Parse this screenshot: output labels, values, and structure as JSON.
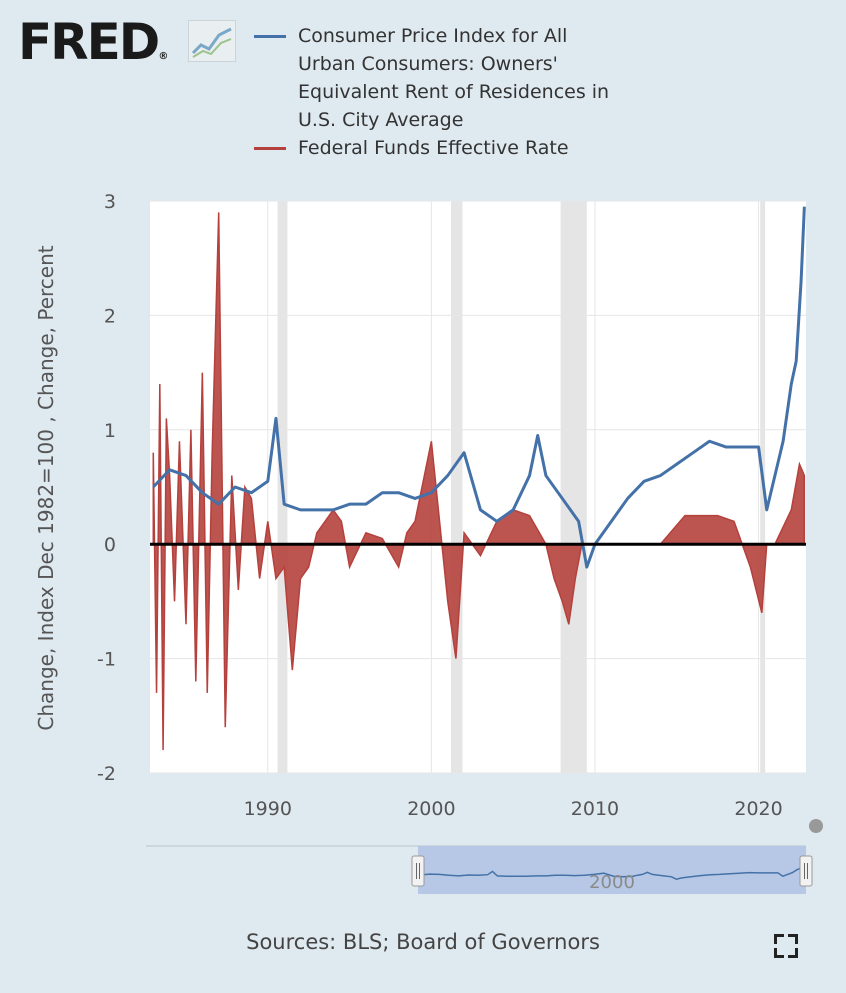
{
  "logo": {
    "text": "FRED",
    "registered": "®"
  },
  "chart_data": {
    "type": "line",
    "x_range": [
      1982.8,
      2022.9
    ],
    "ylim": [
      -2,
      3
    ],
    "yticks": [
      3,
      2,
      1,
      0,
      -1,
      -2
    ],
    "xticks": [
      1990,
      2000,
      2010,
      2020
    ],
    "ylabel": "Change, Index Dec 1982=100 , Change, Percent",
    "recessions": [
      [
        1990.6,
        1991.2
      ],
      [
        2001.2,
        2001.9
      ],
      [
        2007.9,
        2009.5
      ],
      [
        2020.1,
        2020.4
      ]
    ],
    "series": [
      {
        "name": "Consumer Price Index for All Urban Consumers: Owners' Equivalent Rent of Residences in U.S. City Average",
        "color": "#4472a8",
        "x": [
          1983.0,
          1984.0,
          1985.0,
          1986.0,
          1987.0,
          1988.0,
          1989.0,
          1990.0,
          1990.5,
          1991.0,
          1992.0,
          1993.0,
          1994.0,
          1995.0,
          1996.0,
          1997.0,
          1998.0,
          1999.0,
          2000.0,
          2001.0,
          2002.0,
          2003.0,
          2004.0,
          2005.0,
          2006.0,
          2006.5,
          2007.0,
          2008.0,
          2009.0,
          2009.5,
          2010.0,
          2011.0,
          2012.0,
          2013.0,
          2014.0,
          2015.0,
          2016.0,
          2017.0,
          2018.0,
          2019.0,
          2020.0,
          2020.5,
          2021.0,
          2021.5,
          2022.0,
          2022.3,
          2022.6,
          2022.8
        ],
        "values": [
          0.5,
          0.65,
          0.6,
          0.45,
          0.35,
          0.5,
          0.45,
          0.55,
          1.1,
          0.35,
          0.3,
          0.3,
          0.3,
          0.35,
          0.35,
          0.45,
          0.45,
          0.4,
          0.45,
          0.6,
          0.8,
          0.3,
          0.2,
          0.3,
          0.6,
          0.95,
          0.6,
          0.4,
          0.2,
          -0.2,
          0.0,
          0.2,
          0.4,
          0.55,
          0.6,
          0.7,
          0.8,
          0.9,
          0.85,
          0.85,
          0.85,
          0.3,
          0.6,
          0.9,
          1.4,
          1.6,
          2.3,
          2.95
        ]
      },
      {
        "name": "Federal Funds Effective Rate",
        "color": "#b5413d",
        "x": [
          1983.0,
          1983.2,
          1983.4,
          1983.6,
          1983.8,
          1984.0,
          1984.3,
          1984.6,
          1985.0,
          1985.3,
          1985.6,
          1986.0,
          1986.3,
          1986.6,
          1987.0,
          1987.4,
          1987.8,
          1988.2,
          1988.6,
          1989.0,
          1989.5,
          1990.0,
          1990.5,
          1991.0,
          1991.5,
          1992.0,
          1992.5,
          1993.0,
          1994.0,
          1994.5,
          1995.0,
          1996.0,
          1997.0,
          1998.0,
          1998.5,
          1999.0,
          2000.0,
          2001.0,
          2001.5,
          2002.0,
          2003.0,
          2004.0,
          2005.0,
          2006.0,
          2007.0,
          2007.5,
          2008.0,
          2008.4,
          2008.8,
          2009.2,
          2010.0,
          2012.0,
          2014.0,
          2015.5,
          2016.5,
          2017.5,
          2018.5,
          2019.5,
          2020.2,
          2020.5,
          2021.0,
          2022.0,
          2022.5,
          2022.8
        ],
        "values": [
          0.8,
          -1.3,
          1.4,
          -1.8,
          1.1,
          0.6,
          -0.5,
          0.9,
          -0.7,
          1.0,
          -1.2,
          1.5,
          -1.3,
          0.8,
          2.9,
          -1.6,
          0.6,
          -0.4,
          0.5,
          0.4,
          -0.3,
          0.2,
          -0.3,
          -0.2,
          -1.1,
          -0.3,
          -0.2,
          0.1,
          0.3,
          0.2,
          -0.2,
          0.1,
          0.05,
          -0.2,
          0.1,
          0.2,
          0.9,
          -0.5,
          -1.0,
          0.1,
          -0.1,
          0.2,
          0.3,
          0.25,
          0.0,
          -0.3,
          -0.5,
          -0.7,
          -0.3,
          0.0,
          0.0,
          0.0,
          0.0,
          0.25,
          0.25,
          0.25,
          0.2,
          -0.2,
          -0.6,
          0.0,
          0.0,
          0.3,
          0.7,
          0.6
        ]
      }
    ]
  },
  "legend": {
    "items": [
      {
        "label": "Consumer Price Index for All Urban Consumers: Owners' Equivalent Rent of Residences in U.S. City Average",
        "color": "#4472a8"
      },
      {
        "label": "Federal Funds Effective Rate",
        "color": "#b5413d"
      }
    ]
  },
  "navigator": {
    "label": "2000"
  },
  "footer": {
    "sources": "Sources: BLS; Board of Governors"
  },
  "icons": {
    "fullscreen": "fullscreen-icon",
    "logo_graph": "fred-graph-icon"
  }
}
